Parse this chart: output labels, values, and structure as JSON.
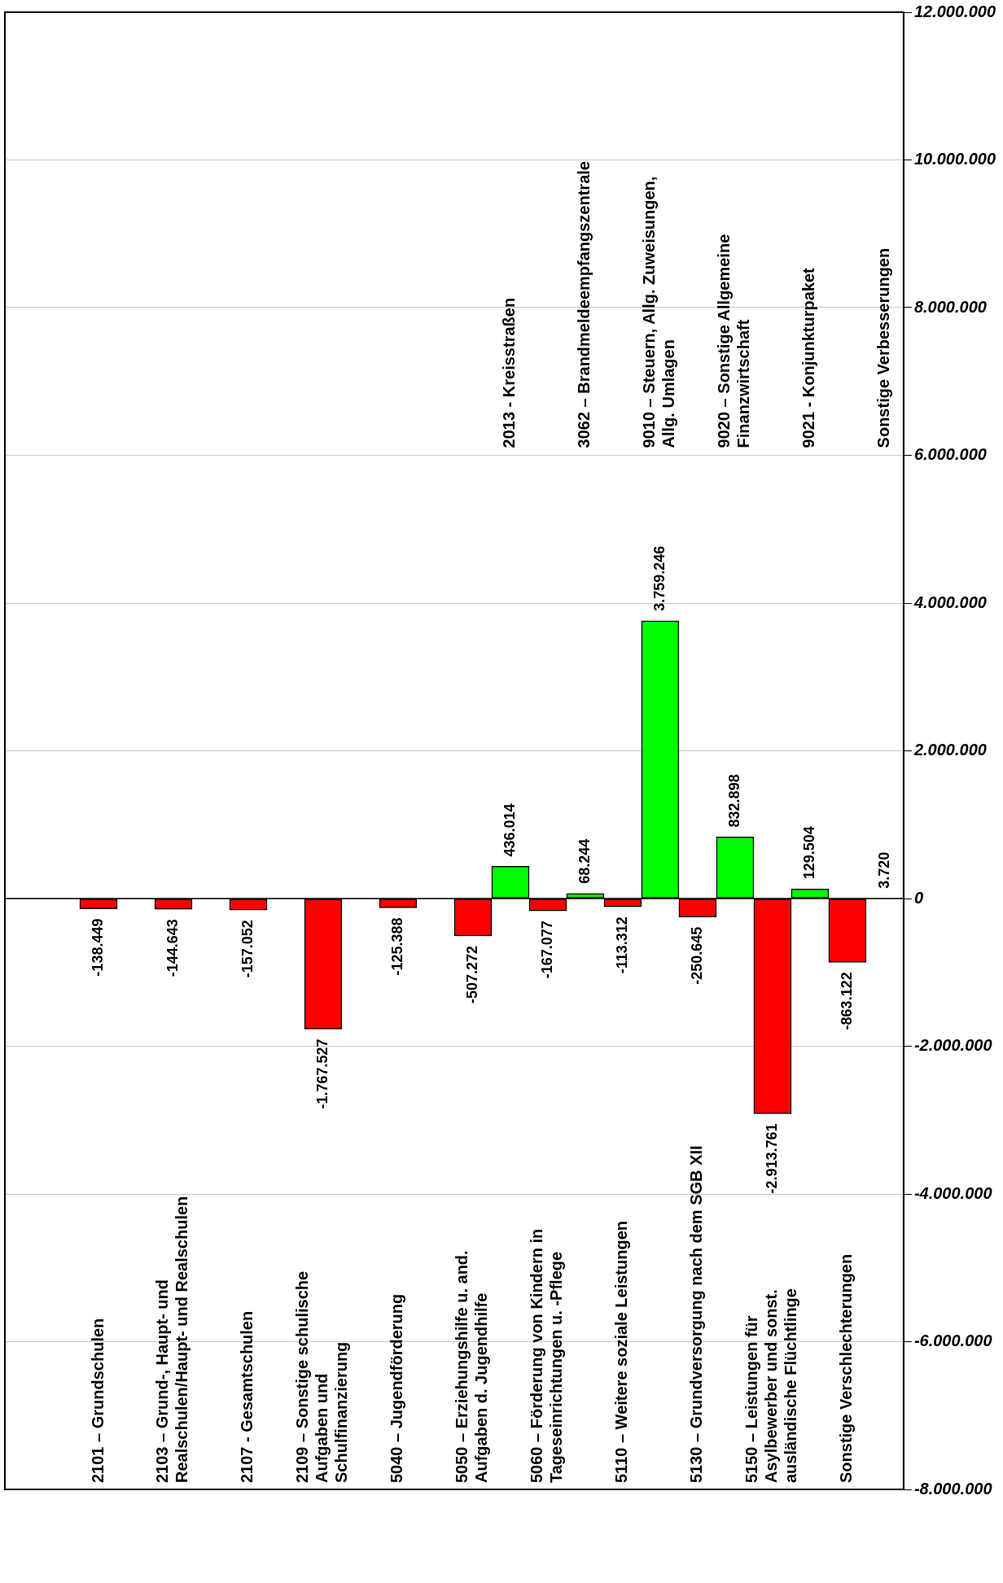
{
  "chart_data": {
    "type": "bar",
    "categories": [
      null,
      null,
      "2101 – Grundschulen",
      null,
      "2103 – Grund-, Haupt- und\nRealschulen/Haupt- und Realschulen",
      null,
      "2107 - Gesamtschulen",
      null,
      "2109 – Sonstige schulische\nAufgaben und\nSchulfinanzierung",
      null,
      "5040 – Jugendförderung",
      null,
      "5050 – Erziehungshilfe u. and.\nAufgaben d. Jugendhilfe",
      "2013 - Kreisstraßen",
      "5060 – Förderung von Kindern in\nTageseinrichtungen u. -Pflege",
      "3062 – Brandmeldeempfangszentrale",
      "5110 – Weitere soziale Leistungen",
      "9010 – Steuern, Allg. Zuweisungen,\nAllg. Umlagen",
      "5130 – Grundversorgung nach dem SGB XII",
      "9020 – Sonstige Allgemeine\nFinanzwirtschaft",
      "5150 – Leistungen für\nAsylbewerber und sonst.\nausländische Flüchtlinge",
      "9021 - Konjunkturpaket",
      "Sonstige Verschlechterungen",
      "Sonstige Verbesserungen"
    ],
    "values": [
      null,
      null,
      -138449,
      null,
      -144643,
      null,
      -157052,
      null,
      -1767527,
      null,
      -125388,
      null,
      -507272,
      436014,
      -167077,
      68244,
      -113312,
      3759246,
      -250645,
      832898,
      -2913761,
      129504,
      -863122,
      3720
    ],
    "colors": [
      "#ff0000",
      "#ff0000",
      "#ff0000",
      "#ff0000",
      "#ff0000",
      "#ff0000",
      "#ff0000",
      "#ff0000",
      "#ff0000",
      "#ff0000",
      "#ff0000",
      "#ff0000",
      "#ff0000",
      "#00ff00",
      "#ff0000",
      "#00ff00",
      "#ff0000",
      "#00ff00",
      "#ff0000",
      "#00ff00",
      "#ff0000",
      "#00ff00",
      "#ff0000",
      "#00ff00"
    ],
    "ylim": [
      -8000000,
      12000000
    ],
    "yticks": [
      {
        "value": -8000000,
        "label": "-8.000.000"
      },
      {
        "value": -6000000,
        "label": "-6.000.000"
      },
      {
        "value": -4000000,
        "label": "-4.000.000"
      },
      {
        "value": -2000000,
        "label": "-2.000.000"
      },
      0,
      {
        "value": 2000000,
        "label": "2.000.000"
      },
      {
        "value": 4000000,
        "label": "4.000.000"
      },
      {
        "value": 6000000,
        "label": "6.000.000"
      },
      {
        "value": 8000000,
        "label": "8.000.000"
      },
      {
        "value": 10000000,
        "label": "10.000.000"
      },
      {
        "value": 12000000,
        "label": "12.000.000"
      }
    ],
    "grid": "y",
    "value_labels": [
      null,
      null,
      "-138.449",
      null,
      "-144.643",
      null,
      "-157.052",
      null,
      "-1.767.527",
      null,
      "-125.388",
      null,
      "-507.272",
      "436.014",
      "-167.077",
      "68.244",
      "-113.312",
      "3.759.246",
      "-250.645",
      "832.898",
      "-2.913.761",
      "129.504",
      "-863.122",
      "3.720"
    ],
    "legend": false
  }
}
